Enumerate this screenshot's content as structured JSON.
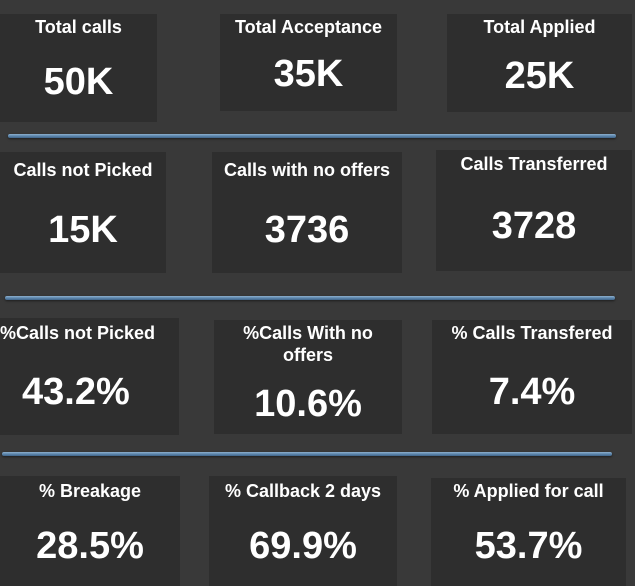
{
  "rows": [
    [
      {
        "title": "Total calls",
        "value": "50K"
      },
      {
        "title": "Total Acceptance",
        "value": "35K"
      },
      {
        "title": "Total Applied",
        "value": "25K"
      }
    ],
    [
      {
        "title": "Calls not Picked",
        "value": "15K"
      },
      {
        "title": "Calls with no offers",
        "value": "3736"
      },
      {
        "title": "Calls Transferred",
        "value": "3728"
      }
    ],
    [
      {
        "title": "%Calls not Picked",
        "value": "43.2%"
      },
      {
        "title": "%Calls With no offers",
        "value": "10.6%"
      },
      {
        "title": "% Calls Transfered",
        "value": "7.4%"
      }
    ],
    [
      {
        "title": "% Breakage",
        "value": "28.5%"
      },
      {
        "title": "% Callback 2 days",
        "value": "69.9%"
      },
      {
        "title": "% Applied for call",
        "value": "53.7%"
      }
    ]
  ],
  "colors": {
    "background": "#393939",
    "card": "#2e2e2e",
    "text": "#ffffff",
    "divider": "#5d87ad"
  }
}
